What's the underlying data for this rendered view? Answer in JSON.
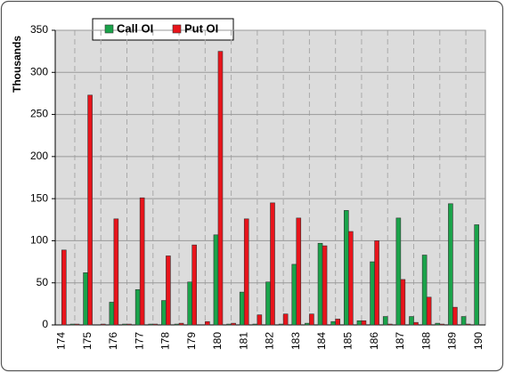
{
  "chart_data": {
    "type": "bar",
    "y_label": "Thousands",
    "categories": [
      "174",
      null,
      "175",
      null,
      "176",
      null,
      "177",
      null,
      "178",
      null,
      "179",
      null,
      "180",
      null,
      "181",
      null,
      "182",
      null,
      "183",
      null,
      "184",
      null,
      "185",
      null,
      "186",
      null,
      "187",
      null,
      "188",
      null,
      "189",
      null,
      "190"
    ],
    "series": [
      {
        "name": "Call OI",
        "color": "#1aa34a",
        "values": [
          0,
          1,
          62,
          0,
          27,
          1,
          42,
          1,
          29,
          1,
          51,
          0,
          107,
          1,
          39,
          1,
          51,
          1,
          72,
          2,
          97,
          4,
          136,
          5,
          75,
          10,
          127,
          10,
          83,
          2,
          144,
          10,
          119
        ]
      },
      {
        "name": "Put OI",
        "color": "#e8141b",
        "values": [
          89,
          1,
          273,
          1,
          126,
          1,
          151,
          1,
          82,
          2,
          95,
          4,
          325,
          2,
          126,
          12,
          145,
          13,
          127,
          13,
          94,
          7,
          111,
          5,
          100,
          1,
          54,
          3,
          33,
          1,
          21,
          1,
          0
        ]
      }
    ],
    "ylim": [
      0,
      350
    ],
    "yticks": [
      0,
      50,
      100,
      150,
      200,
      250,
      300,
      350
    ],
    "grid": true
  }
}
